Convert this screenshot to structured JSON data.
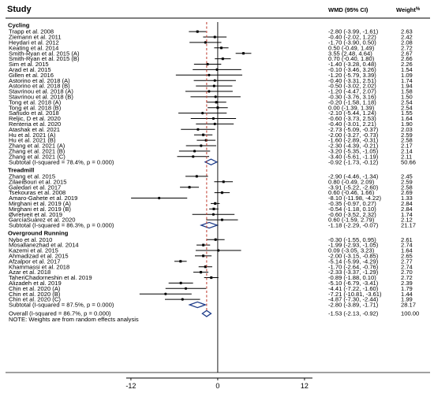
{
  "header": {
    "study_label": "Study",
    "effect_label": "WMD (95% CI)",
    "weight_label": "Weight",
    "weight_unit": "%"
  },
  "chart_data": {
    "type": "forest",
    "x_axis": {
      "ticks": [
        -12,
        0,
        12
      ],
      "min": -14.5,
      "max": 15.5,
      "null_line": 0,
      "overall_line": -1.53
    },
    "groups": [
      {
        "name": "Cycling",
        "studies": [
          {
            "label": "Trapp et al. 2008",
            "est": -2.8,
            "lo": -3.99,
            "hi": -1.61,
            "ci": "-2.80 (-3.99, -1.61)",
            "weight": "2.63"
          },
          {
            "label": "Ziemann et al. 2011",
            "est": -0.4,
            "lo": -2.02,
            "hi": 1.22,
            "ci": "-0.40 (-2.02, 1.22)",
            "weight": "2.42"
          },
          {
            "label": "Heydari et al. 2012",
            "est": -1.7,
            "lo": -3.9,
            "hi": 0.5,
            "ci": "-1.70 (-3.90, 0.50)",
            "weight": "2.08"
          },
          {
            "label": "Keating et al. 2014",
            "est": 0.5,
            "lo": -0.49,
            "hi": 1.49,
            "ci": "0.50 (-0.49, 1.49)",
            "weight": "2.72"
          },
          {
            "label": "Smith-Ryan et al. 2015 (A)",
            "est": 3.55,
            "lo": 2.48,
            "hi": 4.64,
            "ci": "3.55 (2.48, 4.64)",
            "weight": "2.67"
          },
          {
            "label": "Smith-Ryan et al. 2015 (B)",
            "est": 0.7,
            "lo": -0.4,
            "hi": 1.8,
            "ci": "0.70 (-0.40, 1.80)",
            "weight": "2.66"
          },
          {
            "label": "Sim et al. 2015",
            "est": -1.4,
            "lo": -3.28,
            "hi": 0.48,
            "ci": "-1.40 (-3.28, 0.48)",
            "weight": "2.26"
          },
          {
            "label": "Arad et al. 2015",
            "est": -0.1,
            "lo": -3.46,
            "hi": 3.26,
            "ci": "-0.10 (-3.46, 3.26)",
            "weight": "1.54"
          },
          {
            "label": "Gillen et al. 2016",
            "est": -1.2,
            "lo": -5.79,
            "hi": 3.39,
            "ci": "-1.20 (-5.79, 3.39)",
            "weight": "1.09"
          },
          {
            "label": "Astorino et al. 2018 (A)",
            "est": -0.4,
            "lo": -3.31,
            "hi": 2.51,
            "ci": "-0.40 (-3.31, 2.51)",
            "weight": "1.74"
          },
          {
            "label": "Astorino et al. 2018 (B)",
            "est": -0.5,
            "lo": -3.02,
            "hi": 2.02,
            "ci": "-0.50 (-3.02, 2.02)",
            "weight": "1.94"
          },
          {
            "label": "Stavrinou et al. 2018 (A)",
            "est": -1.2,
            "lo": -4.47,
            "hi": 2.07,
            "ci": "-1.20 (-4.47, 2.07)",
            "weight": "1.58"
          },
          {
            "label": "Stavrinou et al. 2018 (B)",
            "est": -0.3,
            "lo": -3.76,
            "hi": 3.16,
            "ci": "-0.30 (-3.76, 3.16)",
            "weight": "1.50"
          },
          {
            "label": "Tong et al. 2018 (A)",
            "est": -0.2,
            "lo": -1.58,
            "hi": 1.18,
            "ci": "-0.20 (-1.58, 1.18)",
            "weight": "2.54"
          },
          {
            "label": "Tong et al. 2018 (B)",
            "est": 0.0,
            "lo": -1.39,
            "hi": 1.39,
            "ci": "0.00 (-1.39, 1.39)",
            "weight": "2.54"
          },
          {
            "label": "Sañudo et al. 2018",
            "est": -2.1,
            "lo": -5.44,
            "hi": 1.24,
            "ci": "-2.10 (-5.44, 1.24)",
            "weight": "1.55"
          },
          {
            "label": "Reljic, D et al. 2020",
            "est": -0.6,
            "lo": -3.73,
            "hi": 2.53,
            "ci": "-0.60 (-3.73, 2.53)",
            "weight": "1.64"
          },
          {
            "label": "Renteria et al. 2020",
            "est": -0.4,
            "lo": -3.01,
            "hi": 2.21,
            "ci": "-0.40 (-3.01, 2.21)",
            "weight": "1.90"
          },
          {
            "label": "Atashak et al. 2021",
            "est": -2.73,
            "lo": -5.09,
            "hi": -0.37,
            "ci": "-2.73 (-5.09, -0.37)",
            "weight": "2.03"
          },
          {
            "label": "Hu et al. 2021 (A)",
            "est": -2.0,
            "lo": -3.27,
            "hi": -0.73,
            "ci": "-2.00 (-3.27, -0.73)",
            "weight": "2.59"
          },
          {
            "label": "Hu et al. 2021 (B)",
            "est": -1.6,
            "lo": -2.89,
            "hi": -0.31,
            "ci": "-1.60 (-2.89, -0.31)",
            "weight": "2.58"
          },
          {
            "label": "Zhang et al. 2021 (A)",
            "est": -2.3,
            "lo": -4.39,
            "hi": -0.21,
            "ci": "-2.30 (-4.39, -0.21)",
            "weight": "2.17"
          },
          {
            "label": "Zhang et al. 2021 (B)",
            "est": -3.2,
            "lo": -5.35,
            "hi": -1.05,
            "ci": "-3.20 (-5.35, -1.05)",
            "weight": "2.14"
          },
          {
            "label": "Zhang et al. 2021 (C)",
            "est": -3.4,
            "lo": -5.61,
            "hi": -1.19,
            "ci": "-3.40 (-5.61, -1.19)",
            "weight": "2.11"
          }
        ],
        "subtotal": {
          "label": "Subtotal  (I-squared = 78.4%, p = 0.000)",
          "est": -0.92,
          "lo": -1.73,
          "hi": -0.12,
          "ci": "-0.92 (-1.73, -0.12)",
          "weight": "50.66"
        }
      },
      {
        "name": "Treadmill",
        "studies": [
          {
            "label": "Zhang et al. 2015",
            "est": -2.9,
            "lo": -4.46,
            "hi": -1.34,
            "ci": "-2.90 (-4.46, -1.34)",
            "weight": "2.45"
          },
          {
            "label": "ZilaeiBouri et al. 2015",
            "est": 0.8,
            "lo": -0.49,
            "hi": 2.09,
            "ci": "0.80 (-0.49, 2.09)",
            "weight": "2.59"
          },
          {
            "label": "Galedari et al. 2017",
            "est": -3.91,
            "lo": -5.22,
            "hi": -2.6,
            "ci": "-3.91 (-5.22, -2.60)",
            "weight": "2.58"
          },
          {
            "label": "Tsekouras et al. 2008",
            "est": 0.6,
            "lo": -0.46,
            "hi": 1.66,
            "ci": "0.60 (-0.46, 1.66)",
            "weight": "2.69"
          },
          {
            "label": "Amaro-Gahete et al. 2019",
            "est": -8.1,
            "lo": -11.98,
            "hi": -4.22,
            "ci": "-8.10 (-11.98, -4.22)",
            "weight": "1.33"
          },
          {
            "label": "Mirghani et al. 2019 (A)",
            "est": -0.35,
            "lo": -0.97,
            "hi": 0.27,
            "ci": "-0.35 (-0.97, 0.27)",
            "weight": "2.84"
          },
          {
            "label": "Mirghani et al. 2019 (B)",
            "est": -0.54,
            "lo": -1.18,
            "hi": 0.1,
            "ci": "-0.54 (-1.18, 0.10)",
            "weight": "2.84"
          },
          {
            "label": "Øvretveit et al. 2019",
            "est": -0.6,
            "lo": -3.52,
            "hi": 2.32,
            "ci": "-0.60 (-3.52, 2.32)",
            "weight": "1.74"
          },
          {
            "label": "GarcíaSuárez et al. 2020",
            "est": 0.6,
            "lo": -1.59,
            "hi": 2.79,
            "ci": "0.60 (-1.59, 2.79)",
            "weight": "2.12"
          }
        ],
        "subtotal": {
          "label": "Subtotal  (I-squared = 86.3%, p = 0.000)",
          "est": -1.18,
          "lo": -2.29,
          "hi": -0.07,
          "ci": "-1.18 (-2.29, -0.07)",
          "weight": "21.17"
        }
      },
      {
        "name": "Overground Running",
        "studies": [
          {
            "label": "Nybo et al. 2010",
            "est": -0.3,
            "lo": -1.55,
            "hi": 0.95,
            "ci": "-0.30 (-1.55, 0.95)",
            "weight": "2.61"
          },
          {
            "label": "Mosallanezhad et al. 2014",
            "est": -1.99,
            "lo": -2.93,
            "hi": -1.05,
            "ci": "-1.99 (-2.93, -1.05)",
            "weight": "2.74"
          },
          {
            "label": "Kazemi et al. 2015",
            "est": 0.09,
            "lo": -3.05,
            "hi": 3.23,
            "ci": "0.09 (-3.05, 3.23)",
            "weight": "1.64"
          },
          {
            "label": "Ahmadizad et al. 2015",
            "est": -2.0,
            "lo": -3.15,
            "hi": -0.85,
            "ci": "-2.00 (-3.15, -0.85)",
            "weight": "2.65"
          },
          {
            "label": "Afzalpor et al. 2017",
            "est": -5.14,
            "lo": -5.99,
            "hi": -4.29,
            "ci": "-5.14 (-5.99, -4.29)",
            "weight": "2.77"
          },
          {
            "label": "Khammassi et al. 2018",
            "est": -1.7,
            "lo": -2.64,
            "hi": -0.76,
            "ci": "-1.70 (-2.64, -0.76)",
            "weight": "2.74"
          },
          {
            "label": "Azar et al. 2018",
            "est": -2.33,
            "lo": -3.37,
            "hi": -1.29,
            "ci": "-2.33 (-3.37, -1.29)",
            "weight": "2.70"
          },
          {
            "label": "TaheriChadorneshin et al. 2019",
            "est": -0.89,
            "lo": -1.88,
            "hi": 0.1,
            "ci": "-0.89 (-1.88, 0.10)",
            "weight": "2.72"
          },
          {
            "label": "Alizadeh et al. 2019",
            "est": -5.1,
            "lo": -6.79,
            "hi": -3.41,
            "ci": "-5.10 (-6.79, -3.41)",
            "weight": "2.39"
          },
          {
            "label": "Chin et al. 2020 (A)",
            "est": -4.41,
            "lo": -7.22,
            "hi": -1.6,
            "ci": "-4.41 (-7.22, -1.60)",
            "weight": "1.79"
          },
          {
            "label": "Chin et al. 2020 (B)",
            "est": -7.21,
            "lo": -10.81,
            "hi": -3.61,
            "ci": "-7.21 (-10.81, -3.61)",
            "weight": "1.44"
          },
          {
            "label": "Chin et al. 2020 (C)",
            "est": -4.87,
            "lo": -7.3,
            "hi": -2.44,
            "ci": "-4.87 (-7.30, -2.44)",
            "weight": "1.99"
          }
        ],
        "subtotal": {
          "label": "Subtotal  (I-squared = 87.5%, p = 0.000)",
          "est": -2.8,
          "lo": -3.89,
          "hi": -1.71,
          "ci": "-2.80 (-3.89, -1.71)",
          "weight": "28.17"
        }
      }
    ],
    "overall": {
      "label": "Overall  (I-squared = 86.7%, p = 0.000)",
      "est": -1.53,
      "lo": -2.13,
      "hi": -0.92,
      "ci": "-1.53 (-2.13, -0.92)",
      "weight": "100.00"
    },
    "note": "NOTE: Weights are from random effects analysis"
  }
}
